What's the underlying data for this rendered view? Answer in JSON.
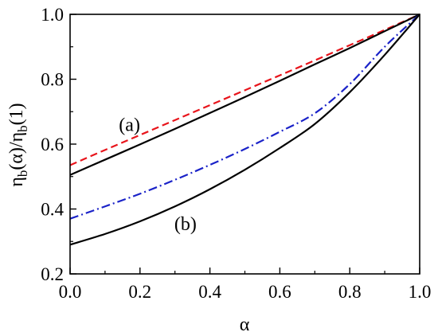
{
  "chart_data": {
    "type": "line",
    "xlabel": "α",
    "ylabel": {
      "main1": "η",
      "sub1": "b",
      "mid": "(α)/η",
      "sub2": "b",
      "end": "(1)"
    },
    "xlim": [
      0.0,
      1.0
    ],
    "ylim": [
      0.2,
      1.0
    ],
    "x_ticks": [
      0.0,
      0.2,
      0.4,
      0.6,
      0.8,
      1.0
    ],
    "y_ticks": [
      0.2,
      0.4,
      0.6,
      0.8,
      1.0
    ],
    "x_tick_labels": [
      "0.0",
      "0.2",
      "0.4",
      "0.6",
      "0.8",
      "1.0"
    ],
    "y_tick_labels": [
      "0.2",
      "0.4",
      "0.6",
      "0.8",
      "1.0"
    ],
    "grid": false,
    "legend": "none",
    "series": [
      {
        "style": "dashed",
        "color": "#e8141b",
        "x": [
          0.0,
          0.1,
          0.2,
          0.3,
          0.4,
          0.5,
          0.6,
          0.7,
          0.8,
          0.9,
          1.0
        ],
        "y": [
          0.535,
          0.582,
          0.628,
          0.674,
          0.72,
          0.766,
          0.812,
          0.858,
          0.905,
          0.952,
          1.0
        ]
      },
      {
        "style": "solid",
        "color": "#000000",
        "x": [
          0.0,
          0.1,
          0.2,
          0.3,
          0.4,
          0.5,
          0.6,
          0.7,
          0.8,
          0.9,
          1.0
        ],
        "y": [
          0.505,
          0.552,
          0.599,
          0.647,
          0.696,
          0.745,
          0.795,
          0.846,
          0.896,
          0.948,
          1.0
        ]
      },
      {
        "style": "dash-dot",
        "color": "#1a22c8",
        "x": [
          0.0,
          0.1,
          0.2,
          0.3,
          0.4,
          0.5,
          0.6,
          0.7,
          0.8,
          0.9,
          1.0
        ],
        "y": [
          0.37,
          0.408,
          0.447,
          0.49,
          0.536,
          0.585,
          0.638,
          0.695,
          0.785,
          0.9,
          1.0
        ]
      },
      {
        "style": "solid",
        "color": "#000000",
        "x": [
          0.0,
          0.1,
          0.2,
          0.3,
          0.4,
          0.5,
          0.6,
          0.7,
          0.8,
          0.9,
          1.0
        ],
        "y": [
          0.29,
          0.323,
          0.362,
          0.408,
          0.461,
          0.521,
          0.588,
          0.662,
          0.76,
          0.875,
          1.0
        ]
      }
    ],
    "annotations": [
      {
        "text": "(a)",
        "x": 0.17,
        "y": 0.64
      },
      {
        "text": "(b)",
        "x": 0.33,
        "y": 0.335
      }
    ]
  }
}
